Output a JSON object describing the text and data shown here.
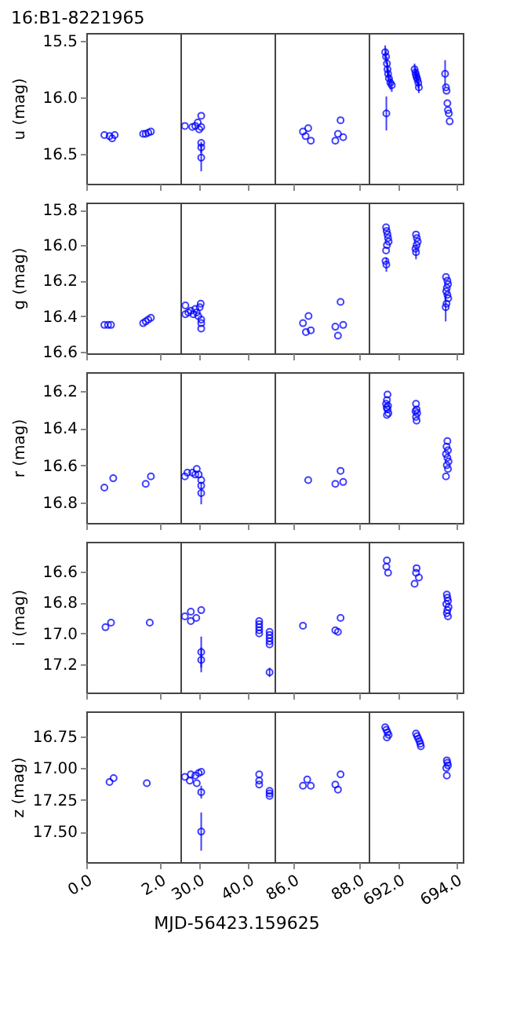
{
  "chart_data": [
    {
      "type": "scatter",
      "title": "16:B1-8221965",
      "ylabel": "u (mag)",
      "tick_labels": "y",
      "color": "#0000ff",
      "marker": "circle",
      "xlim": [
        0,
        2.55
      ],
      "xticks": [
        {
          "value": 0,
          "label": null
        },
        {
          "value": 2,
          "label": null
        }
      ],
      "ylim": [
        16.76,
        15.43
      ],
      "yticks": [
        {
          "value": 15.5,
          "label": "15.5"
        },
        {
          "value": 16,
          "label": "16.0"
        },
        {
          "value": 16.5,
          "label": "16.5"
        }
      ],
      "x": [
        0.49,
        0.63,
        0.7,
        0.77,
        1.54,
        1.61,
        1.68,
        1.75
      ],
      "values": [
        16.33,
        16.34,
        16.36,
        16.33,
        16.32,
        16.32,
        16.31,
        16.3
      ]
    },
    {
      "type": "scatter",
      "tick_labels": false,
      "color": "#0000ff",
      "marker": "circle",
      "xlim": [
        26.3,
        45.3
      ],
      "xticks": [
        {
          "value": 30,
          "label": null
        },
        {
          "value": 40,
          "label": null
        }
      ],
      "ylim": [
        16.76,
        15.43
      ],
      "x": [
        27.2,
        28.7,
        29.3,
        29.8,
        30.1,
        30.5,
        30.5,
        30.5,
        30.5,
        30.5
      ],
      "values": [
        16.25,
        16.26,
        16.25,
        16.22,
        16.28,
        16.16,
        16.26,
        16.4,
        16.44,
        16.53
      ],
      "errors": [
        null,
        null,
        null,
        null,
        null,
        null,
        null,
        null,
        0.05,
        0.12
      ]
    },
    {
      "type": "scatter",
      "tick_labels": false,
      "color": "#0000ff",
      "marker": "circle",
      "xlim": [
        85.43,
        88.31
      ],
      "xticks": [
        {
          "value": 86,
          "label": null
        },
        {
          "value": 88,
          "label": null
        }
      ],
      "ylim": [
        16.76,
        15.43
      ],
      "x": [
        86.3,
        86.38,
        86.46,
        86.54,
        87.29,
        87.37,
        87.45,
        87.53
      ],
      "values": [
        16.3,
        16.34,
        16.27,
        16.38,
        16.38,
        16.32,
        16.2,
        16.35
      ]
    },
    {
      "type": "scatter",
      "tick_labels": false,
      "color": "#0000ff",
      "marker": "circle",
      "xlim": [
        690.94,
        694.24
      ],
      "xticks": [
        {
          "value": 692,
          "label": null
        },
        {
          "value": 694,
          "label": null
        }
      ],
      "ylim": [
        16.76,
        15.43
      ],
      "x": [
        691.52,
        691.55,
        691.58,
        691.6,
        691.62,
        691.65,
        691.7,
        691.75,
        691.56,
        692.55,
        692.58,
        692.6,
        692.62,
        692.65,
        692.68,
        692.7,
        693.62,
        693.65,
        693.67,
        693.7,
        693.72,
        693.75,
        693.78
      ],
      "values": [
        15.6,
        15.64,
        15.7,
        15.75,
        15.79,
        15.83,
        15.87,
        15.89,
        16.14,
        15.75,
        15.78,
        15.8,
        15.82,
        15.84,
        15.87,
        15.91,
        15.79,
        15.91,
        15.94,
        16.05,
        16.11,
        16.14,
        16.21
      ],
      "errors": [
        0.06,
        0.06,
        0.06,
        0.06,
        0.06,
        0.06,
        0.06,
        0.06,
        0.15,
        0.05,
        0.05,
        0.05,
        0.05,
        0.05,
        0.05,
        0.05,
        0.12,
        null,
        null,
        null,
        null,
        null,
        null
      ]
    },
    {
      "type": "scatter",
      "ylabel": "g (mag)",
      "tick_labels": "y",
      "color": "#0000ff",
      "marker": "circle",
      "xlim": [
        0,
        2.55
      ],
      "xticks": [
        {
          "value": 0,
          "label": null
        },
        {
          "value": 2,
          "label": null
        }
      ],
      "ylim": [
        16.61,
        15.76
      ],
      "yticks": [
        {
          "value": 15.8,
          "label": "15.8"
        },
        {
          "value": 16,
          "label": "16.0"
        },
        {
          "value": 16.2,
          "label": "16.2"
        },
        {
          "value": 16.4,
          "label": "16.4"
        },
        {
          "value": 16.6,
          "label": "16.6"
        }
      ],
      "x": [
        0.49,
        0.59,
        0.67,
        1.54,
        1.61,
        1.68,
        1.75
      ],
      "values": [
        16.45,
        16.45,
        16.45,
        16.44,
        16.43,
        16.42,
        16.41
      ]
    },
    {
      "type": "scatter",
      "tick_labels": false,
      "color": "#0000ff",
      "marker": "circle",
      "xlim": [
        26.3,
        45.3
      ],
      "xticks": [
        {
          "value": 30,
          "label": null
        },
        {
          "value": 40,
          "label": null
        }
      ],
      "ylim": [
        16.61,
        15.76
      ],
      "x": [
        27.3,
        27.3,
        27.9,
        28.4,
        28.9,
        29.3,
        29.6,
        29.9,
        30.2,
        30.4,
        30.5,
        30.5,
        30.5
      ],
      "values": [
        16.34,
        16.39,
        16.38,
        16.37,
        16.39,
        16.36,
        16.38,
        16.4,
        16.35,
        16.33,
        16.42,
        16.44,
        16.47
      ]
    },
    {
      "type": "scatter",
      "tick_labels": false,
      "color": "#0000ff",
      "marker": "circle",
      "xlim": [
        85.43,
        88.31
      ],
      "xticks": [
        {
          "value": 86,
          "label": null
        },
        {
          "value": 88,
          "label": null
        }
      ],
      "ylim": [
        16.61,
        15.76
      ],
      "x": [
        86.3,
        86.39,
        86.47,
        86.54,
        87.29,
        87.37,
        87.45,
        87.53
      ],
      "values": [
        16.44,
        16.49,
        16.4,
        16.48,
        16.46,
        16.51,
        16.32,
        16.45
      ]
    },
    {
      "type": "scatter",
      "tick_labels": false,
      "color": "#0000ff",
      "marker": "circle",
      "xlim": [
        690.94,
        694.24
      ],
      "xticks": [
        {
          "value": 692,
          "label": null
        },
        {
          "value": 694,
          "label": null
        }
      ],
      "ylim": [
        16.61,
        15.76
      ],
      "x": [
        691.55,
        691.57,
        691.6,
        691.62,
        691.64,
        691.58,
        691.55,
        691.53,
        691.56,
        692.6,
        692.63,
        692.66,
        692.62,
        692.58,
        692.6,
        693.65,
        693.7,
        693.72,
        693.68,
        693.66,
        693.7,
        693.73,
        693.67,
        693.64
      ],
      "values": [
        15.9,
        15.92,
        15.94,
        15.96,
        15.98,
        16.0,
        16.03,
        16.09,
        16.11,
        15.94,
        15.96,
        15.98,
        16.0,
        16.02,
        16.04,
        16.18,
        16.2,
        16.22,
        16.24,
        16.26,
        16.28,
        16.3,
        16.33,
        16.35
      ],
      "errors": [
        null,
        null,
        null,
        null,
        null,
        null,
        null,
        null,
        0.04,
        null,
        null,
        null,
        null,
        null,
        0.04,
        null,
        null,
        null,
        null,
        null,
        null,
        null,
        null,
        0.08
      ]
    },
    {
      "type": "scatter",
      "ylabel": "r (mag)",
      "tick_labels": "y",
      "color": "#0000ff",
      "marker": "circle",
      "xlim": [
        0,
        2.55
      ],
      "xticks": [
        {
          "value": 0,
          "label": null
        },
        {
          "value": 2,
          "label": null
        }
      ],
      "ylim": [
        16.91,
        16.1
      ],
      "yticks": [
        {
          "value": 16.2,
          "label": "16.2"
        },
        {
          "value": 16.4,
          "label": "16.4"
        },
        {
          "value": 16.6,
          "label": "16.6"
        },
        {
          "value": 16.8,
          "label": "16.8"
        }
      ],
      "x": [
        0.49,
        0.73,
        1.61,
        1.75
      ],
      "values": [
        16.72,
        16.67,
        16.7,
        16.66
      ]
    },
    {
      "type": "scatter",
      "tick_labels": false,
      "color": "#0000ff",
      "marker": "circle",
      "xlim": [
        26.3,
        45.3
      ],
      "xticks": [
        {
          "value": 30,
          "label": null
        },
        {
          "value": 40,
          "label": null
        }
      ],
      "ylim": [
        16.91,
        16.1
      ],
      "x": [
        27.2,
        27.7,
        28.7,
        29.3,
        29.6,
        30.0,
        30.5,
        30.5,
        30.5
      ],
      "values": [
        16.66,
        16.64,
        16.64,
        16.65,
        16.62,
        16.65,
        16.68,
        16.71,
        16.75
      ],
      "errors": [
        null,
        null,
        null,
        null,
        null,
        null,
        null,
        null,
        0.06
      ]
    },
    {
      "type": "scatter",
      "tick_labels": false,
      "color": "#0000ff",
      "marker": "circle",
      "xlim": [
        85.43,
        88.31
      ],
      "xticks": [
        {
          "value": 86,
          "label": null
        },
        {
          "value": 88,
          "label": null
        }
      ],
      "ylim": [
        16.91,
        16.1
      ],
      "x": [
        86.46,
        87.29,
        87.45,
        87.53
      ],
      "values": [
        16.68,
        16.7,
        16.63,
        16.69
      ]
    },
    {
      "type": "scatter",
      "tick_labels": false,
      "color": "#0000ff",
      "marker": "circle",
      "xlim": [
        690.94,
        694.24
      ],
      "xticks": [
        {
          "value": 692,
          "label": null
        },
        {
          "value": 694,
          "label": null
        }
      ],
      "ylim": [
        16.91,
        16.1
      ],
      "x": [
        691.6,
        691.58,
        691.55,
        691.62,
        691.57,
        691.6,
        691.63,
        691.58,
        692.6,
        692.62,
        692.58,
        692.64,
        692.6,
        692.62,
        693.7,
        693.67,
        693.72,
        693.65,
        693.7,
        693.74,
        693.68,
        693.72,
        693.65
      ],
      "values": [
        16.22,
        16.25,
        16.27,
        16.28,
        16.29,
        16.3,
        16.32,
        16.33,
        16.27,
        16.3,
        16.31,
        16.32,
        16.34,
        16.36,
        16.47,
        16.5,
        16.52,
        16.54,
        16.56,
        16.58,
        16.6,
        16.62,
        16.66
      ]
    },
    {
      "type": "scatter",
      "ylabel": "i (mag)",
      "tick_labels": "y",
      "color": "#0000ff",
      "marker": "circle",
      "xlim": [
        0,
        2.55
      ],
      "xticks": [
        {
          "value": 0,
          "label": null
        },
        {
          "value": 2,
          "label": null
        }
      ],
      "ylim": [
        17.38,
        16.41
      ],
      "yticks": [
        {
          "value": 16.6,
          "label": "16.6"
        },
        {
          "value": 16.8,
          "label": "16.8"
        },
        {
          "value": 17,
          "label": "17.0"
        },
        {
          "value": 17.2,
          "label": "17.2"
        }
      ],
      "x": [
        0.52,
        0.67,
        1.72
      ],
      "values": [
        16.96,
        16.93,
        16.93
      ]
    },
    {
      "type": "scatter",
      "tick_labels": false,
      "color": "#0000ff",
      "marker": "circle",
      "xlim": [
        26.3,
        45.3
      ],
      "xticks": [
        {
          "value": 30,
          "label": null
        },
        {
          "value": 40,
          "label": null
        }
      ],
      "ylim": [
        17.38,
        16.41
      ],
      "x": [
        27.2,
        28.4,
        28.4,
        29.5,
        30.5,
        30.5,
        30.5,
        42.2,
        42.2,
        42.2,
        42.2,
        42.2,
        44.3,
        44.3,
        44.3,
        44.3,
        44.3,
        44.3
      ],
      "values": [
        16.89,
        16.92,
        16.86,
        16.9,
        16.85,
        17.12,
        17.17,
        16.92,
        16.94,
        16.96,
        16.98,
        17.0,
        16.99,
        17.01,
        17.03,
        17.05,
        17.07,
        17.25
      ],
      "errors": [
        null,
        null,
        null,
        null,
        null,
        0.1,
        0.08,
        null,
        null,
        null,
        null,
        null,
        null,
        null,
        null,
        null,
        null,
        0.03
      ]
    },
    {
      "type": "scatter",
      "tick_labels": false,
      "color": "#0000ff",
      "marker": "circle",
      "xlim": [
        85.43,
        88.31
      ],
      "xticks": [
        {
          "value": 86,
          "label": null
        },
        {
          "value": 88,
          "label": null
        }
      ],
      "ylim": [
        17.38,
        16.41
      ],
      "x": [
        86.3,
        87.29,
        87.37,
        87.45
      ],
      "values": [
        16.95,
        16.98,
        16.99,
        16.9
      ]
    },
    {
      "type": "scatter",
      "tick_labels": false,
      "color": "#0000ff",
      "marker": "circle",
      "xlim": [
        690.94,
        694.24
      ],
      "xticks": [
        {
          "value": 692,
          "label": null
        },
        {
          "value": 694,
          "label": null
        }
      ],
      "ylim": [
        17.38,
        16.41
      ],
      "x": [
        691.58,
        691.56,
        691.62,
        692.62,
        692.6,
        692.7,
        692.55,
        693.68,
        693.7,
        693.72,
        693.66,
        693.74,
        693.7,
        693.68,
        693.72
      ],
      "values": [
        16.53,
        16.57,
        16.61,
        16.58,
        16.61,
        16.64,
        16.68,
        16.75,
        16.77,
        16.79,
        16.81,
        16.83,
        16.85,
        16.87,
        16.89
      ]
    },
    {
      "type": "scatter",
      "ylabel": "z (mag)",
      "xlabel": "MJD-56423.159625",
      "color": "#0000ff",
      "marker": "circle",
      "xlim": [
        0,
        2.55
      ],
      "xticks": [
        {
          "value": 0,
          "label": "0.0"
        },
        {
          "value": 2,
          "label": "2.0"
        }
      ],
      "ylim": [
        17.74,
        16.555
      ],
      "yticks": [
        {
          "value": 16.75,
          "label": "16.75"
        },
        {
          "value": 17,
          "label": "17.00"
        },
        {
          "value": 17.25,
          "label": "17.25"
        },
        {
          "value": 17.5,
          "label": "17.50"
        }
      ],
      "x": [
        0.63,
        0.74,
        1.64
      ],
      "values": [
        17.11,
        17.08,
        17.12
      ]
    },
    {
      "type": "scatter",
      "tick_labels": "x",
      "color": "#0000ff",
      "marker": "circle",
      "xlim": [
        26.3,
        45.3
      ],
      "xticks": [
        {
          "value": 30,
          "label": "30.0"
        },
        {
          "value": 40,
          "label": "40.0"
        }
      ],
      "ylim": [
        17.74,
        16.555
      ],
      "x": [
        27.2,
        28.2,
        28.4,
        29.3,
        29.6,
        30.0,
        30.5,
        30.5,
        30.5,
        42.2,
        42.2,
        42.2,
        44.3,
        44.3,
        44.3
      ],
      "values": [
        17.07,
        17.1,
        17.05,
        17.06,
        17.12,
        17.04,
        17.03,
        17.19,
        17.5,
        17.05,
        17.1,
        17.13,
        17.18,
        17.2,
        17.22
      ],
      "errors": [
        null,
        null,
        null,
        null,
        null,
        null,
        null,
        0.05,
        0.15,
        null,
        null,
        null,
        null,
        null,
        null
      ]
    },
    {
      "type": "scatter",
      "tick_labels": "x",
      "color": "#0000ff",
      "marker": "circle",
      "xlim": [
        85.43,
        88.31
      ],
      "xticks": [
        {
          "value": 86,
          "label": "86.0"
        },
        {
          "value": 88,
          "label": "88.0"
        }
      ],
      "ylim": [
        17.74,
        16.555
      ],
      "x": [
        86.3,
        86.43,
        86.54,
        87.29,
        87.37,
        87.45
      ],
      "values": [
        17.14,
        17.09,
        17.14,
        17.13,
        17.17,
        17.05
      ]
    },
    {
      "type": "scatter",
      "tick_labels": "x",
      "color": "#0000ff",
      "marker": "circle",
      "xlim": [
        690.94,
        694.24
      ],
      "xticks": [
        {
          "value": 692,
          "label": "692.0"
        },
        {
          "value": 694,
          "label": "694.0"
        }
      ],
      "ylim": [
        17.74,
        16.555
      ],
      "x": [
        691.52,
        691.56,
        691.6,
        691.64,
        691.58,
        692.6,
        692.64,
        692.68,
        692.72,
        692.75,
        692.77,
        693.68,
        693.7,
        693.72,
        693.66,
        693.68
      ],
      "values": [
        16.68,
        16.7,
        16.72,
        16.74,
        16.76,
        16.73,
        16.75,
        16.77,
        16.79,
        16.81,
        16.83,
        16.94,
        16.96,
        16.98,
        17.0,
        17.06
      ]
    }
  ]
}
